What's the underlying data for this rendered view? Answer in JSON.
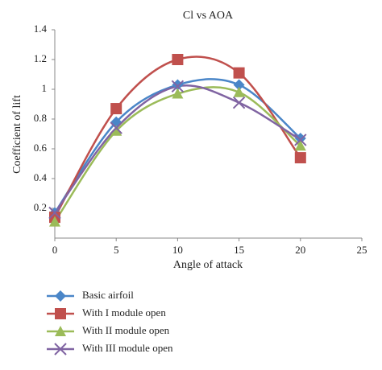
{
  "chart_data": {
    "type": "line",
    "title": "Cl vs AOA",
    "x_label": "Angle of attack",
    "y_label": "Coefficient of lift",
    "x": [
      0,
      5,
      10,
      15,
      20
    ],
    "series": [
      {
        "name": "Basic airfoil",
        "color": "#4a86c8",
        "marker": "diamond",
        "values": [
          0.17,
          0.78,
          1.03,
          1.03,
          0.67
        ]
      },
      {
        "name": "With I module open",
        "color": "#c0504d",
        "marker": "square",
        "values": [
          0.14,
          0.87,
          1.2,
          1.11,
          0.54
        ]
      },
      {
        "name": "With II module open",
        "color": "#9bbb59",
        "marker": "triangle",
        "values": [
          0.11,
          0.72,
          0.97,
          0.98,
          0.62
        ]
      },
      {
        "name": "With III module open",
        "color": "#8064a2",
        "marker": "x",
        "values": [
          0.17,
          0.74,
          1.02,
          0.91,
          0.66
        ]
      }
    ],
    "xlim": [
      0,
      25
    ],
    "xticks": [
      0,
      5,
      10,
      15,
      20,
      25
    ],
    "ylim": [
      0,
      1.4
    ],
    "yticks": [
      0.2,
      0.4,
      0.6,
      0.8,
      1,
      1.2,
      1.4
    ],
    "grid": false,
    "smooth": true,
    "legend": "bottom-left"
  }
}
